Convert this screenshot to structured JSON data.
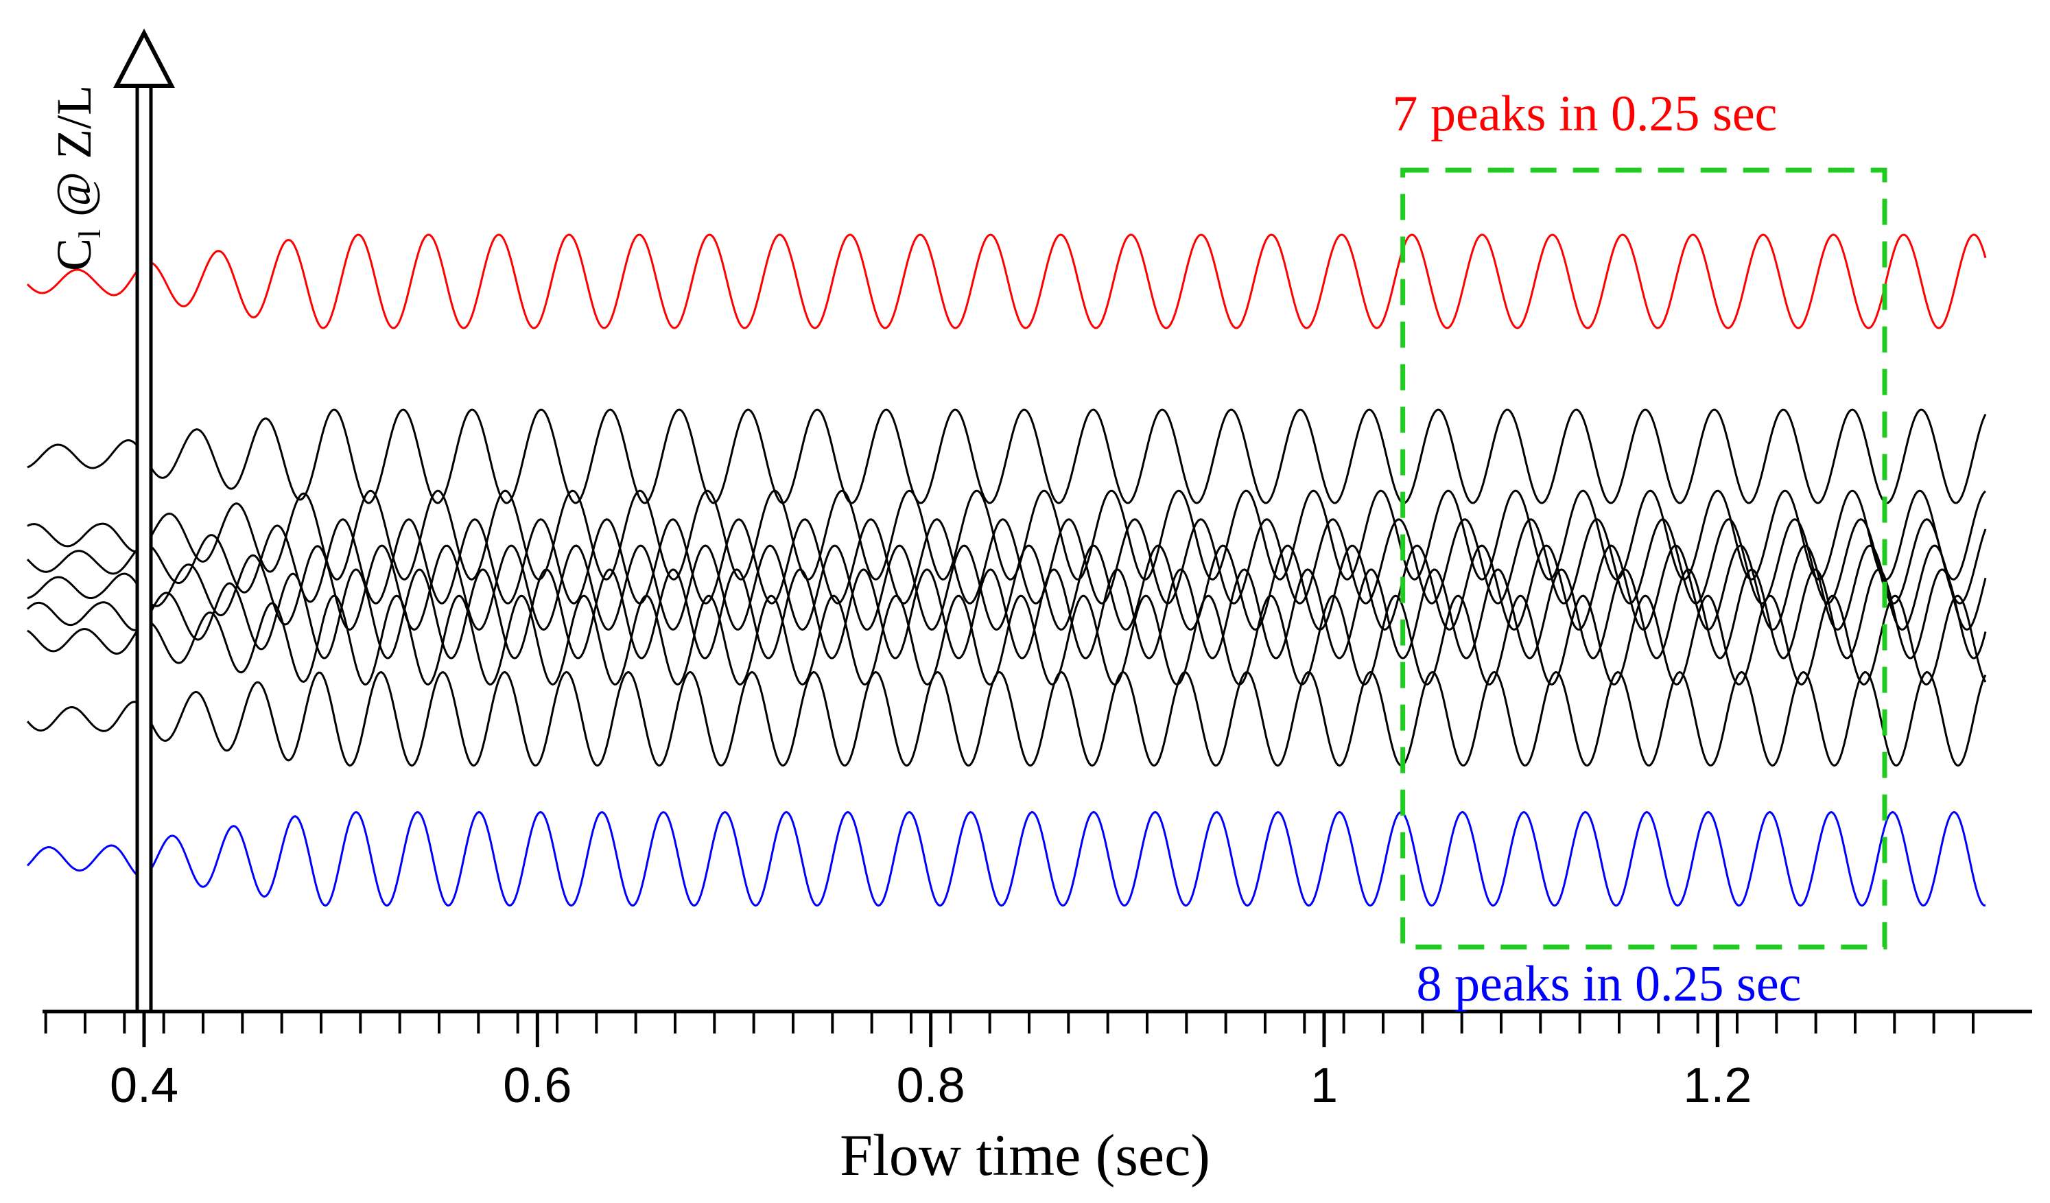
{
  "chart_data": {
    "type": "line",
    "xlabel": "Flow time (sec)",
    "ylabel_main": "C",
    "ylabel_sub": "l",
    "ylabel_rest": " @ Z/L",
    "xlim": [
      0.35,
      1.33
    ],
    "x_ticks": [
      {
        "value": 0.4,
        "label": "0.4"
      },
      {
        "value": 0.6,
        "label": "0.6"
      },
      {
        "value": 0.8,
        "label": "0.8"
      },
      {
        "value": 1.0,
        "label": "1"
      },
      {
        "value": 1.2,
        "label": "1.2"
      }
    ],
    "minor_tick_step": 0.02,
    "series": [
      {
        "name": "top",
        "color": "#ff0000",
        "offset": 0.0,
        "frequency_hz": 28.0,
        "amplitude": 1.0,
        "phase": 0.0
      },
      {
        "name": "black-1",
        "color": "#000000",
        "offset": 1.0,
        "frequency_hz": 28.5,
        "amplitude": 1.0,
        "phase": 0.6
      },
      {
        "name": "black-2",
        "color": "#000000",
        "offset": 1.45,
        "frequency_hz": 29.2,
        "amplitude": 0.95,
        "phase": 1.3
      },
      {
        "name": "black-3",
        "color": "#000000",
        "offset": 1.6,
        "frequency_hz": 29.8,
        "amplitude": 0.9,
        "phase": 2.0
      },
      {
        "name": "black-4",
        "color": "#000000",
        "offset": 1.75,
        "frequency_hz": 30.4,
        "amplitude": 0.9,
        "phase": 2.6
      },
      {
        "name": "black-5",
        "color": "#000000",
        "offset": 1.9,
        "frequency_hz": 31.0,
        "amplitude": 0.95,
        "phase": 3.2
      },
      {
        "name": "black-6",
        "color": "#000000",
        "offset": 2.05,
        "frequency_hz": 31.5,
        "amplitude": 0.95,
        "phase": 3.8
      },
      {
        "name": "black-7",
        "color": "#000000",
        "offset": 2.5,
        "frequency_hz": 31.8,
        "amplitude": 1.0,
        "phase": 4.4
      },
      {
        "name": "bottom",
        "color": "#0000ff",
        "offset": 3.3,
        "frequency_hz": 32.0,
        "amplitude": 1.0,
        "phase": 0.0
      }
    ],
    "annotations": [
      {
        "text": "7 peaks in 0.25 sec",
        "color": "#ff0000"
      },
      {
        "text": "8 peaks in 0.25 sec",
        "color": "#0000ff"
      }
    ],
    "highlight_box": {
      "x_start": 1.04,
      "x_end": 1.285,
      "color": "#1fcc1f",
      "style": "dashed"
    }
  }
}
